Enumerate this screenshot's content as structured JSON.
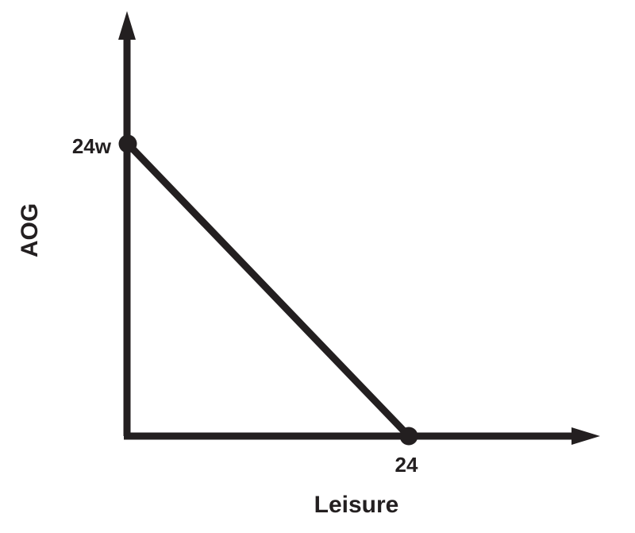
{
  "chart_data": {
    "type": "line",
    "title": "",
    "xlabel": "Leisure",
    "ylabel": "AOG",
    "x_tick_labels": [
      "24"
    ],
    "y_tick_labels": [
      "24w"
    ],
    "series": [
      {
        "points": [
          {
            "x": "0",
            "y": "24w"
          },
          {
            "x": "24",
            "y": "0"
          }
        ]
      }
    ],
    "grid": false,
    "legend": false
  },
  "colors": {
    "ink": "#231f20",
    "background": "#ffffff"
  }
}
